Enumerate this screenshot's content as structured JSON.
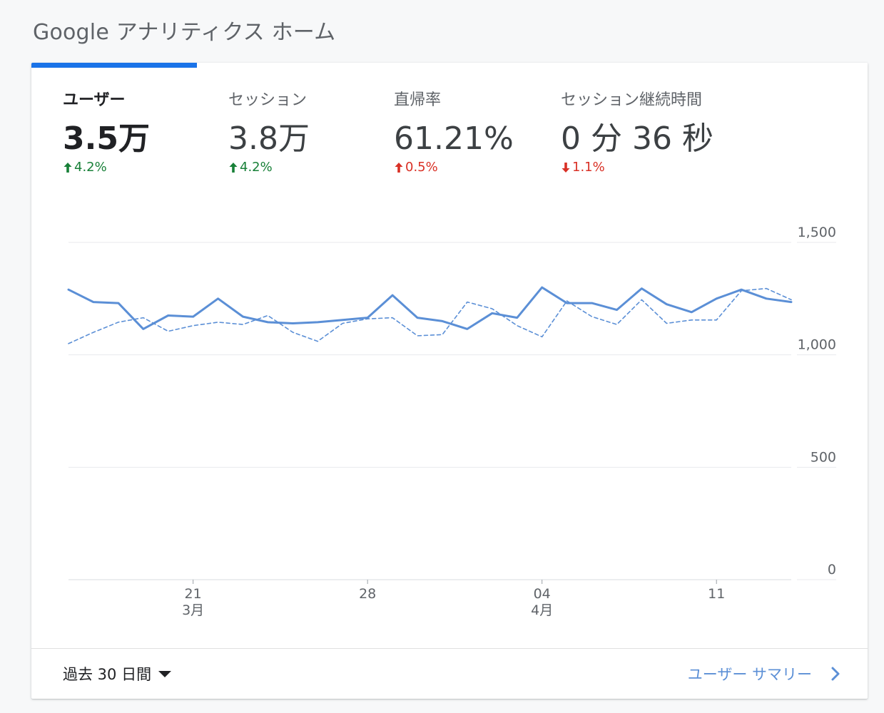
{
  "page_title": "Google アナリティクス ホーム",
  "metrics": [
    {
      "label": "ユーザー",
      "value": "3.5万",
      "change": "4.2%",
      "direction": "up",
      "tone": "good"
    },
    {
      "label": "セッション",
      "value": "3.8万",
      "change": "4.2%",
      "direction": "up",
      "tone": "good"
    },
    {
      "label": "直帰率",
      "value": "61.21%",
      "change": "0.5%",
      "direction": "up",
      "tone": "bad"
    },
    {
      "label": "セッション継続時間",
      "value": "0 分 36 秒",
      "change": "1.1%",
      "direction": "down",
      "tone": "bad"
    }
  ],
  "colors": {
    "accent": "#1a73e8",
    "line": "#5b8fd6",
    "positive": "#188038",
    "negative": "#d93025"
  },
  "chart_data": {
    "type": "line",
    "x_tick_labels": [
      {
        "index": 5,
        "day": "21",
        "month": "3月"
      },
      {
        "index": 12,
        "day": "28",
        "month": ""
      },
      {
        "index": 19,
        "day": "04",
        "month": "4月"
      },
      {
        "index": 26,
        "day": "11",
        "month": ""
      }
    ],
    "y_ticks": [
      0,
      500,
      1000,
      1500
    ],
    "y_tick_labels": [
      "0",
      "500",
      "1,000",
      "1,500"
    ],
    "ylim": [
      0,
      1500
    ],
    "grid": true,
    "series": [
      {
        "style": "solid",
        "values": [
          1290,
          1235,
          1230,
          1115,
          1175,
          1170,
          1250,
          1170,
          1145,
          1140,
          1145,
          1155,
          1165,
          1265,
          1165,
          1150,
          1115,
          1185,
          1165,
          1300,
          1230,
          1230,
          1200,
          1295,
          1225,
          1190,
          1250,
          1290,
          1250,
          1235
        ]
      },
      {
        "style": "dashed",
        "values": [
          1050,
          1100,
          1145,
          1165,
          1105,
          1130,
          1145,
          1135,
          1175,
          1100,
          1060,
          1140,
          1160,
          1165,
          1085,
          1090,
          1235,
          1205,
          1130,
          1080,
          1240,
          1170,
          1135,
          1245,
          1140,
          1155,
          1155,
          1285,
          1295,
          1245
        ]
      }
    ]
  },
  "footer": {
    "date_range": "過去 30 日間",
    "summary_link": "ユーザー サマリー"
  }
}
